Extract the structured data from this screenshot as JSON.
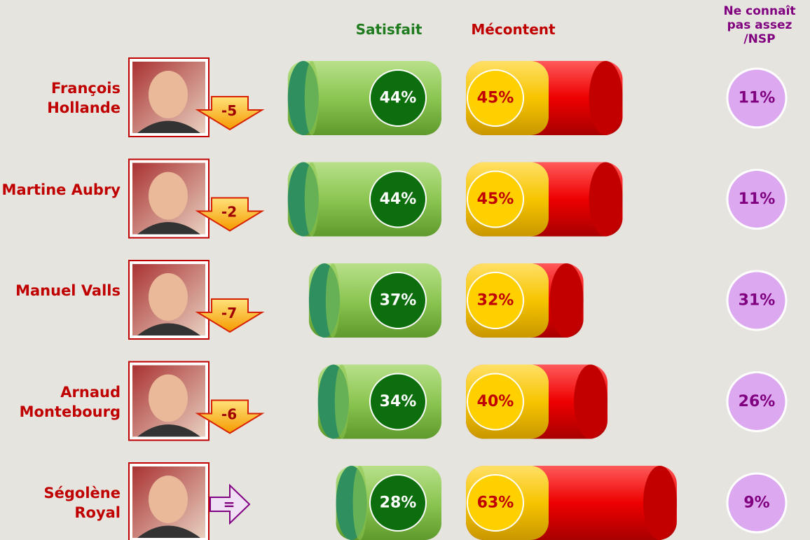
{
  "chart_data": {
    "type": "bar",
    "categories": [
      "François Hollande",
      "Martine Aubry",
      "Manuel Valls",
      "Arnaud Montebourg",
      "Ségolène Royal"
    ],
    "changes": {
      "values": [
        -5,
        -2,
        -7,
        -6,
        0
      ],
      "value_labels": [
        "-5",
        "-2",
        "-7",
        "-6",
        "="
      ]
    },
    "series": [
      {
        "name": "Satisfait",
        "color": "#1e7b1e",
        "values": [
          44,
          44,
          37,
          34,
          28
        ],
        "value_labels": [
          "44%",
          "44%",
          "37%",
          "34%",
          "28%"
        ]
      },
      {
        "name": "Mécontent",
        "color": "#c00000",
        "values": [
          45,
          45,
          32,
          40,
          63
        ],
        "value_labels": [
          "45%",
          "45%",
          "32%",
          "40%",
          "63%"
        ]
      },
      {
        "name": "Ne connaît pas assez /NSP",
        "color": "#800080",
        "values": [
          11,
          11,
          31,
          26,
          9
        ],
        "value_labels": [
          "11%",
          "11%",
          "31%",
          "26%",
          "9%"
        ]
      }
    ]
  }
}
